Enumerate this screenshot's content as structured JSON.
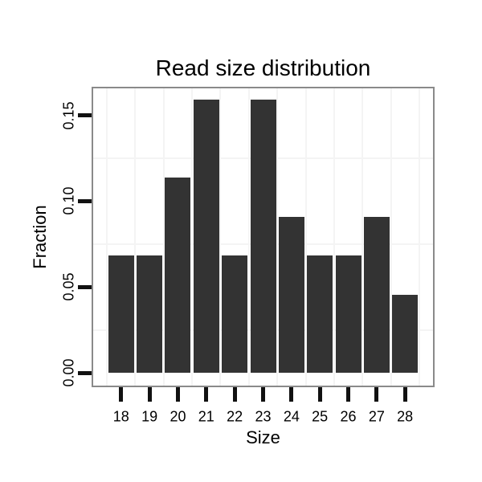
{
  "chart_data": {
    "type": "bar",
    "title": "Read size distribution",
    "xlabel": "Size",
    "ylabel": "Fraction",
    "categories": [
      18,
      19,
      20,
      21,
      22,
      23,
      24,
      25,
      26,
      27,
      28
    ],
    "x_tick_labels": [
      "18",
      "19",
      "20",
      "21",
      "22",
      "23",
      "24",
      "25",
      "26",
      "27",
      "28"
    ],
    "values": [
      0.0682,
      0.0682,
      0.1136,
      0.1591,
      0.0682,
      0.1591,
      0.0909,
      0.0682,
      0.0682,
      0.0909,
      0.0455
    ],
    "y_ticks": [
      {
        "value": 0.0,
        "label": "0.00"
      },
      {
        "value": 0.05,
        "label": "0.05"
      },
      {
        "value": 0.1,
        "label": "0.10"
      },
      {
        "value": 0.15,
        "label": "0.15"
      }
    ],
    "y_minor_gridlines": [
      0.025,
      0.075,
      0.125
    ],
    "x_minor_gridlines": [
      17.5,
      18.5,
      19.5,
      20.5,
      21.5,
      22.5,
      23.5,
      24.5,
      25.5,
      26.5,
      27.5,
      28.5
    ],
    "ylim": [
      -0.008,
      0.1667
    ],
    "xlim": [
      16.96,
      29.04
    ],
    "grid": "minor-only",
    "legend": "none",
    "colors": {
      "bar_fill": "#333333",
      "panel_border": "#8a8a8a",
      "tick": "#111111",
      "gridline": "#f4f4f4",
      "text": "#000000",
      "background": "#ffffff"
    }
  }
}
